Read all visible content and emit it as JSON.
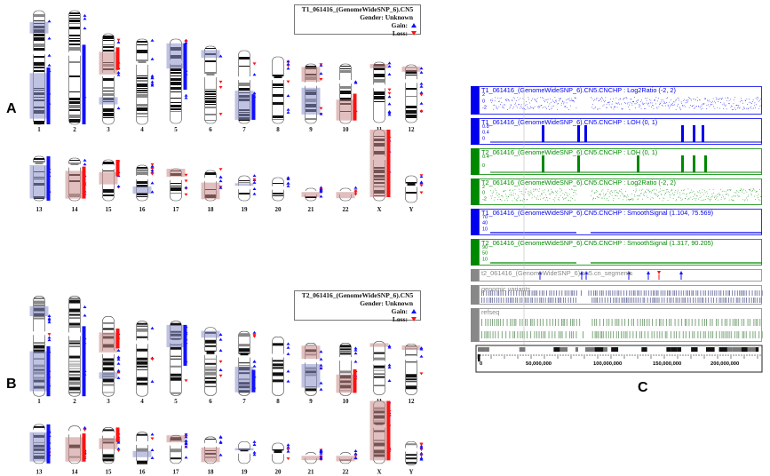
{
  "panels": {
    "a": {
      "letter": "A",
      "legend": {
        "title": "T1_061416_(GenomeWideSNP_6).CN5",
        "gender": "Gender: Unknown",
        "gain": "Gain:",
        "loss": "Loss:"
      }
    },
    "b": {
      "letter": "B",
      "legend": {
        "title": "T2_061416_(GenomeWideSNP_6).CN5",
        "gender": "Gender: Unknown",
        "gain": "Gain:",
        "loss": "Loss:"
      }
    },
    "c": {
      "letter": "C"
    }
  },
  "chromosomes": {
    "row1": [
      "1",
      "2",
      "3",
      "4",
      "5",
      "6",
      "7",
      "8",
      "9",
      "10",
      "11",
      "12"
    ],
    "row2": [
      "13",
      "14",
      "15",
      "16",
      "17",
      "18",
      "19",
      "20",
      "21",
      "22",
      "X",
      "Y"
    ]
  },
  "colors": {
    "gain": "#1010ff",
    "loss": "#ff1010",
    "gain_shade": "#8a8fc8",
    "loss_shade": "#c98a8a",
    "track_blue": "#0000ee",
    "track_green": "#008800",
    "track_gray": "#888888",
    "variant_bar": "#7b7fa6",
    "refseq_bar": "#7fa67f"
  },
  "browser": {
    "tracks": [
      {
        "label": "T1_061416_(GenomeWideSNP_6).CN5.CNCHP : Log2Ratio (-2, 2)",
        "color": "blue",
        "type": "scatter",
        "scale": [
          "2",
          "0",
          "-2"
        ]
      },
      {
        "label": "T1_061416_(GenomeWideSNP_6).CN5.CNCHP : LOH (0, 1)",
        "color": "blue",
        "type": "loh",
        "scale": [
          "0.8",
          "0.4",
          "0"
        ]
      },
      {
        "label": "T2_061416_(GenomeWideSNP_6).CN5.CNCHP : LOH (0, 1)",
        "color": "green",
        "type": "loh",
        "scale": [
          "0.4",
          "0"
        ]
      },
      {
        "label": "T2_061416_(GenomeWideSNP_6).CN5.CNCHP : Log2Ratio (-2, 2)",
        "color": "green",
        "type": "scatter",
        "scale": [
          "2",
          "0",
          "-2"
        ]
      },
      {
        "label": "T1_061416_(GenomeWideSNP_6).CN5.CNCHP : SmoothSignal (1.104, 75.569)",
        "color": "blue",
        "type": "smooth",
        "scale": [
          "70",
          "40",
          "10"
        ]
      },
      {
        "label": "T2_061416_(GenomeWideSNP_6).CN5.CNCHP : SmoothSignal (1.317, 90.205)",
        "color": "green",
        "type": "smooth",
        "scale": [
          "90",
          "50",
          "10"
        ]
      },
      {
        "label": "t2_061416_(GenomeWideSNP_6).cn5.cn_segments",
        "color": "gray",
        "type": "segments",
        "scale": []
      },
      {
        "label": "genomic variants",
        "color": "gray",
        "type": "variants",
        "scale": []
      },
      {
        "label": "refseq",
        "color": "gray",
        "type": "refseq",
        "scale": []
      }
    ],
    "ruler": {
      "labels": [
        "0",
        "50,000,000",
        "100,000,000",
        "150,000,000",
        "200,000,000"
      ]
    }
  }
}
